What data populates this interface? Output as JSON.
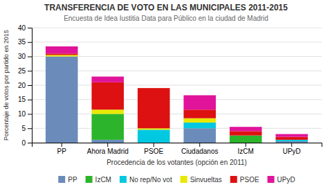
{
  "chart_data": {
    "type": "bar",
    "stacked": true,
    "title": "TRANSFERENCIA DE VOTO EN LAS MUNICIPALES 2011-2015",
    "subtitle": "Encuesta de Idea Iustitia Data para Público en la ciudad de Madrid",
    "xlabel": "Procedencia de los votantes (opción en 2011)",
    "ylabel": "Porcentaje de votos por partido en 2015",
    "categories": [
      "PP",
      "Ahora Madrid",
      "PSOE",
      "Ciudadanos",
      "IzCM",
      "UPyD"
    ],
    "series": [
      {
        "name": "PP",
        "color": "#6b8cba",
        "values": [
          30.0,
          1.0,
          0.0,
          5.0,
          0.0,
          0.5
        ]
      },
      {
        "name": "IzCM",
        "color": "#2cb52c",
        "values": [
          0.0,
          9.0,
          0.0,
          0.0,
          2.5,
          0.0
        ]
      },
      {
        "name": "No rep/No vot",
        "color": "#00c8e0",
        "values": [
          0.0,
          0.0,
          4.5,
          2.0,
          0.0,
          0.5
        ]
      },
      {
        "name": "Sinvueltas",
        "color": "#e8e800",
        "values": [
          0.5,
          1.5,
          0.5,
          1.5,
          0.0,
          0.0
        ]
      },
      {
        "name": "PSOE",
        "color": "#dd1111",
        "values": [
          0.5,
          9.5,
          14.0,
          3.0,
          1.5,
          1.0
        ]
      },
      {
        "name": "UPyD",
        "color": "#e0149a",
        "values": [
          2.5,
          2.0,
          0.0,
          5.0,
          1.5,
          1.0
        ]
      }
    ],
    "ylim": [
      0,
      40
    ],
    "yticks": [
      0,
      5,
      10,
      15,
      20,
      25,
      30,
      35,
      40
    ],
    "grid": true,
    "legend": "bottom"
  }
}
